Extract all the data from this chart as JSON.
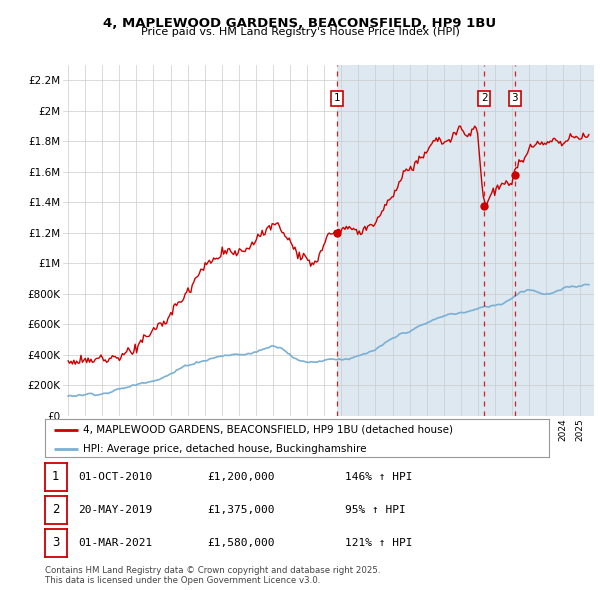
{
  "title": "4, MAPLEWOOD GARDENS, BEACONSFIELD, HP9 1BU",
  "subtitle": "Price paid vs. HM Land Registry's House Price Index (HPI)",
  "legend_line1": "4, MAPLEWOOD GARDENS, BEACONSFIELD, HP9 1BU (detached house)",
  "legend_line2": "HPI: Average price, detached house, Buckinghamshire",
  "footer": "Contains HM Land Registry data © Crown copyright and database right 2025.\nThis data is licensed under the Open Government Licence v3.0.",
  "sale_dates_num": [
    2010.75,
    2019.38,
    2021.17
  ],
  "sale_prices": [
    1200000,
    1375000,
    1580000
  ],
  "sale_dates_str": [
    "01-OCT-2010",
    "20-MAY-2019",
    "01-MAR-2021"
  ],
  "sale_prices_str": [
    "£1,200,000",
    "£1,375,000",
    "£1,580,000"
  ],
  "sale_pcts": [
    "146% ↑ HPI",
    "95% ↑ HPI",
    "121% ↑ HPI"
  ],
  "ylim": [
    0,
    2300000
  ],
  "yticks": [
    0,
    200000,
    400000,
    600000,
    800000,
    1000000,
    1200000,
    1400000,
    1600000,
    1800000,
    2000000,
    2200000
  ],
  "ytick_labels": [
    "£0",
    "£200K",
    "£400K",
    "£600K",
    "£800K",
    "£1M",
    "£1.2M",
    "£1.4M",
    "£1.6M",
    "£1.8M",
    "£2M",
    "£2.2M"
  ],
  "xlim_min": 1994.7,
  "xlim_max": 2025.8,
  "red_line_color": "#cc0000",
  "blue_line_color": "#7ab0d4",
  "dashed_line_color": "#cc0000",
  "shade_color": "#dde8f0",
  "background_color": "#ffffff",
  "grid_color": "#cccccc",
  "label_box_color": "#cc0000"
}
